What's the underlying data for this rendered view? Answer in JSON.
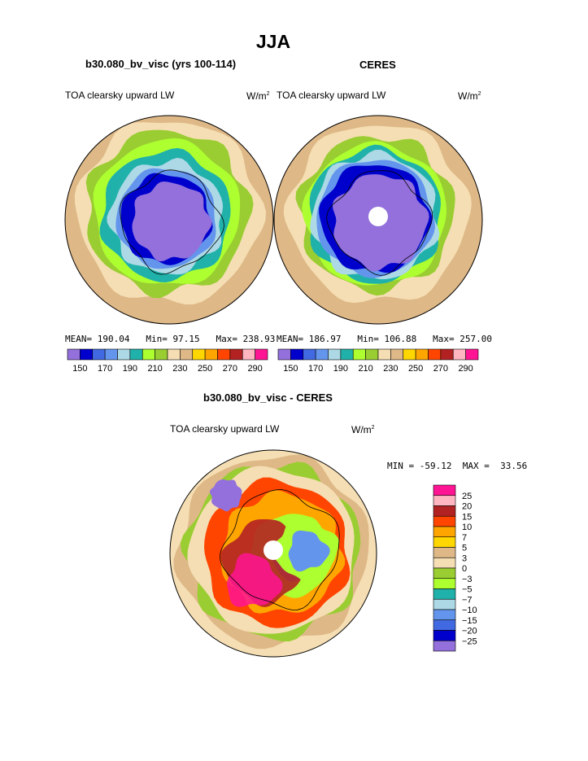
{
  "page_title": "JJA",
  "chart_data": [
    {
      "type": "heatmap",
      "projection": "south-polar-stereographic",
      "title": "b30.080_bv_visc (yrs 100-114)",
      "variable": "TOA clearsky upward LW",
      "units": "W/m",
      "units_exp": "2",
      "stats": {
        "mean_label": "MEAN=",
        "mean": "190.04",
        "min_label": "Min=",
        "min": "97.15",
        "max_label": "Max=",
        "max": "238.93"
      },
      "colorbar": {
        "levels": [
          150,
          160,
          170,
          180,
          190,
          200,
          210,
          220,
          230,
          240,
          250,
          260,
          270,
          280,
          290
        ],
        "tick_labels": [
          "150",
          "170",
          "190",
          "210",
          "230",
          "250",
          "270",
          "290"
        ],
        "colors": [
          "#9370db",
          "#0000cd",
          "#4169e1",
          "#6495ed",
          "#add8e6",
          "#20b2aa",
          "#adff2f",
          "#9acd32",
          "#f5deb3",
          "#deb887",
          "#ffd700",
          "#ffa500",
          "#ff4500",
          "#b22222",
          "#ffb6c1",
          "#ff1493"
        ]
      },
      "zones": [
        {
          "value": 225,
          "color": "#deb887"
        },
        {
          "value": 215,
          "color": "#f5deb3"
        },
        {
          "value": 205,
          "color": "#9acd32"
        },
        {
          "value": 200,
          "color": "#adff2f"
        },
        {
          "value": 195,
          "color": "#20b2aa"
        },
        {
          "value": 185,
          "color": "#add8e6"
        },
        {
          "value": 175,
          "color": "#6495ed"
        },
        {
          "value": 165,
          "color": "#0000cd"
        },
        {
          "value": 150,
          "color": "#9370db"
        }
      ]
    },
    {
      "type": "heatmap",
      "projection": "south-polar-stereographic",
      "title": "CERES",
      "variable": "TOA clearsky upward LW",
      "units": "W/m",
      "units_exp": "2",
      "stats": {
        "mean_label": "MEAN=",
        "mean": "186.97",
        "min_label": "Min=",
        "min": "106.88",
        "max_label": "Max=",
        "max": "257.00"
      },
      "colorbar": {
        "levels": [
          150,
          160,
          170,
          180,
          190,
          200,
          210,
          220,
          230,
          240,
          250,
          260,
          270,
          280,
          290
        ],
        "tick_labels": [
          "150",
          "170",
          "190",
          "210",
          "230",
          "250",
          "270",
          "290"
        ],
        "colors": [
          "#9370db",
          "#0000cd",
          "#4169e1",
          "#6495ed",
          "#add8e6",
          "#20b2aa",
          "#adff2f",
          "#9acd32",
          "#f5deb3",
          "#deb887",
          "#ffd700",
          "#ffa500",
          "#ff4500",
          "#b22222",
          "#ffb6c1",
          "#ff1493"
        ]
      },
      "zones": [
        {
          "value": 225,
          "color": "#deb887"
        },
        {
          "value": 215,
          "color": "#f5deb3"
        },
        {
          "value": 205,
          "color": "#9acd32"
        },
        {
          "value": 200,
          "color": "#adff2f"
        },
        {
          "value": 195,
          "color": "#20b2aa"
        },
        {
          "value": 185,
          "color": "#add8e6"
        },
        {
          "value": 175,
          "color": "#6495ed"
        },
        {
          "value": 165,
          "color": "#0000cd"
        },
        {
          "value": 150,
          "color": "#9370db"
        }
      ]
    },
    {
      "type": "heatmap",
      "projection": "south-polar-stereographic",
      "title": "b30.080_bv_visc - CERES",
      "variable": "TOA clearsky upward LW",
      "units": "W/m",
      "units_exp": "2",
      "stats": {
        "min_label": "MIN =",
        "min": "-59.12",
        "max_label": "MAX =",
        "max": "33.56"
      },
      "colorbar": {
        "levels": [
          -25,
          -20,
          -15,
          -10,
          -7,
          -5,
          -3,
          0,
          3,
          5,
          7,
          10,
          15,
          20,
          25
        ],
        "tick_labels": [
          "25",
          "20",
          "15",
          "10",
          "7",
          "5",
          "3",
          "0",
          "−3",
          "−5",
          "−7",
          "−10",
          "−15",
          "−20",
          "−25"
        ],
        "colors": [
          "#ff1493",
          "#ffb6c1",
          "#b22222",
          "#ff4500",
          "#ffa500",
          "#ffd700",
          "#deb887",
          "#f5deb3",
          "#9acd32",
          "#adff2f",
          "#20b2aa",
          "#add8e6",
          "#6495ed",
          "#4169e1",
          "#0000cd",
          "#9370db"
        ]
      },
      "zones": [
        {
          "value": 2,
          "color": "#f5deb3"
        },
        {
          "value": 4,
          "color": "#deb887"
        },
        {
          "value": -4,
          "color": "#9acd32"
        },
        {
          "value": 2,
          "color": "#f5deb3"
        },
        {
          "value": 12,
          "color": "#ff4500"
        },
        {
          "value": 8,
          "color": "#ffa500"
        },
        {
          "value": -6,
          "color": "#adff2f"
        },
        {
          "value": -12,
          "color": "#6495ed"
        },
        {
          "value": -30,
          "color": "#9370db"
        }
      ]
    }
  ]
}
